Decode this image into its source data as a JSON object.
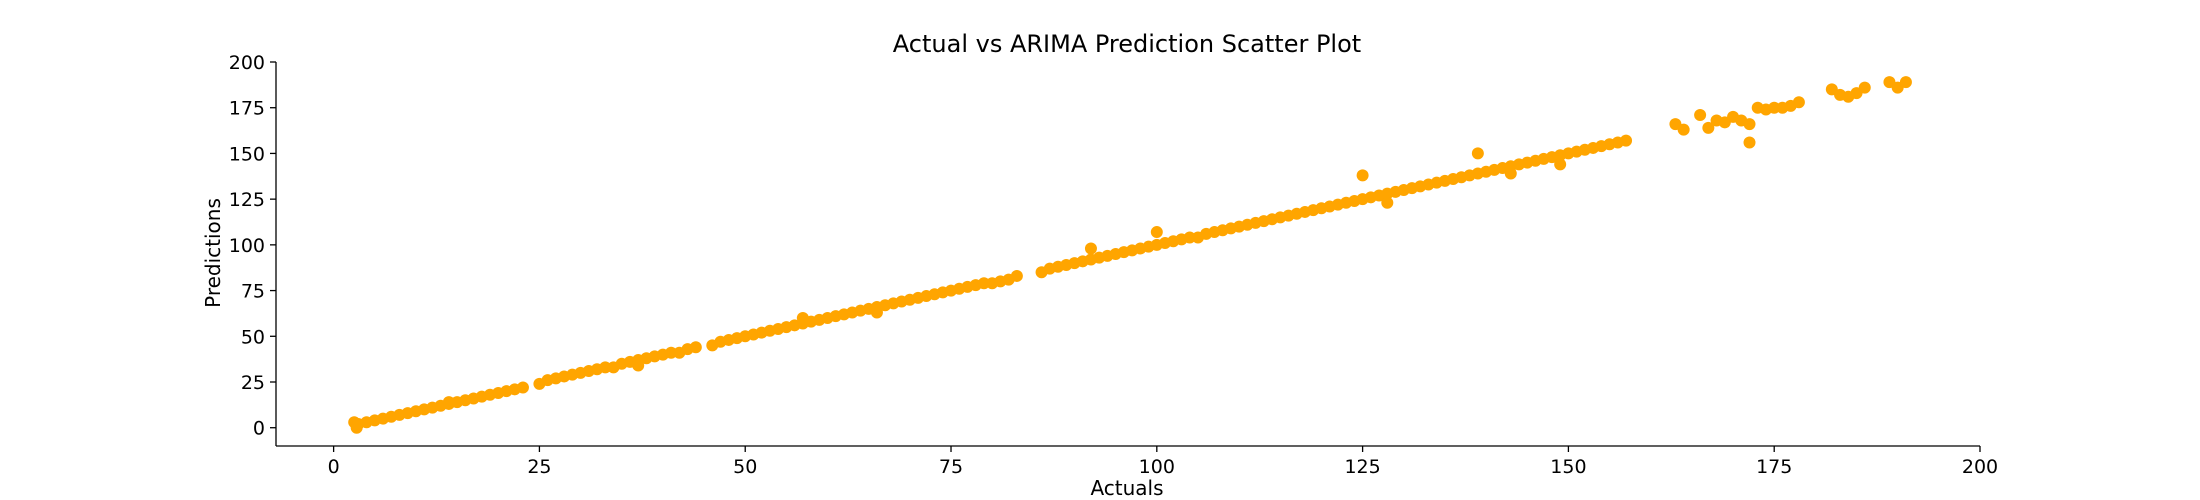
{
  "chart_data": {
    "type": "scatter",
    "title": "Actual vs ARIMA Prediction Scatter Plot",
    "xlabel": "Actuals",
    "ylabel": "Predictions",
    "xlim": [
      -7,
      200
    ],
    "ylim": [
      -10,
      200
    ],
    "xticks": [
      "0",
      "25",
      "50",
      "75",
      "100",
      "125",
      "150",
      "175",
      "200"
    ],
    "yticks": [
      "0",
      "25",
      "50",
      "75",
      "100",
      "125",
      "150",
      "175",
      "200"
    ],
    "grid": false,
    "marker_color": "#FFA500",
    "series": [
      {
        "x": [
          2.5,
          3,
          4,
          5,
          6,
          7,
          8,
          9,
          10,
          11,
          12,
          13,
          14,
          15,
          16,
          17,
          18,
          19,
          20,
          21,
          22,
          23,
          25,
          26,
          27,
          28,
          29,
          30,
          31,
          32,
          33,
          34,
          35,
          36,
          37,
          38,
          39,
          40,
          41,
          42,
          43,
          44,
          46,
          47,
          48,
          49,
          50,
          51,
          52,
          53,
          54,
          55,
          56,
          57,
          58,
          59,
          60,
          61,
          62,
          63,
          64,
          65,
          66,
          67,
          68,
          69,
          70,
          71,
          72,
          73,
          74,
          75,
          76,
          77,
          78,
          79,
          80,
          81,
          82,
          83,
          86,
          87,
          88,
          89,
          90,
          91,
          92,
          93,
          94,
          95,
          96,
          97,
          98,
          99,
          100,
          101,
          102,
          103,
          104,
          105,
          106,
          107,
          108,
          109,
          110,
          111,
          112,
          113,
          114,
          115,
          116,
          117,
          118,
          119,
          120,
          121,
          122,
          123,
          124,
          125,
          126,
          127,
          128,
          129,
          130,
          131,
          132,
          133,
          134,
          135,
          136,
          137,
          138,
          139,
          140,
          141,
          142,
          143,
          144,
          145,
          146,
          147,
          148,
          149,
          150,
          151,
          152,
          153,
          154,
          155,
          156,
          157,
          163,
          164,
          166,
          167,
          168,
          169,
          170,
          171,
          172,
          173,
          174,
          175,
          176,
          177,
          178,
          182,
          183,
          184,
          185,
          186,
          189,
          190,
          191,
          2.8,
          14,
          37,
          57,
          66,
          92,
          100,
          125,
          128,
          139,
          143,
          149,
          172
        ],
        "y": [
          3,
          2,
          3,
          4,
          5,
          6,
          7,
          8,
          9,
          10,
          11,
          12,
          13,
          14,
          15,
          16,
          17,
          18,
          19,
          20,
          21,
          22,
          24,
          26,
          27,
          28,
          29,
          30,
          31,
          32,
          33,
          33,
          35,
          36,
          37,
          38,
          39,
          40,
          41,
          41,
          43,
          44,
          45,
          47,
          48,
          49,
          50,
          51,
          52,
          53,
          54,
          55,
          56,
          57,
          58,
          59,
          60,
          61,
          62,
          63,
          64,
          65,
          66,
          67,
          68,
          69,
          70,
          71,
          72,
          73,
          74,
          75,
          76,
          77,
          78,
          79,
          79,
          80,
          81,
          83,
          85,
          87,
          88,
          89,
          90,
          91,
          92,
          93,
          94,
          95,
          96,
          97,
          98,
          99,
          100,
          101,
          102,
          103,
          104,
          104,
          106,
          107,
          108,
          109,
          110,
          111,
          112,
          113,
          114,
          115,
          116,
          117,
          118,
          119,
          120,
          121,
          122,
          123,
          124,
          125,
          126,
          127,
          128,
          129,
          130,
          131,
          132,
          133,
          134,
          135,
          136,
          137,
          138,
          139,
          140,
          141,
          142,
          143,
          144,
          145,
          146,
          147,
          148,
          149,
          150,
          151,
          152,
          153,
          154,
          155,
          156,
          157,
          166,
          163,
          171,
          164,
          168,
          167,
          170,
          168,
          166,
          175,
          174,
          175,
          175,
          176,
          178,
          185,
          182,
          181,
          183,
          186,
          189,
          186,
          189,
          0,
          14,
          34,
          60,
          63,
          98,
          107,
          138,
          123,
          150,
          139,
          144,
          156
        ]
      }
    ]
  }
}
